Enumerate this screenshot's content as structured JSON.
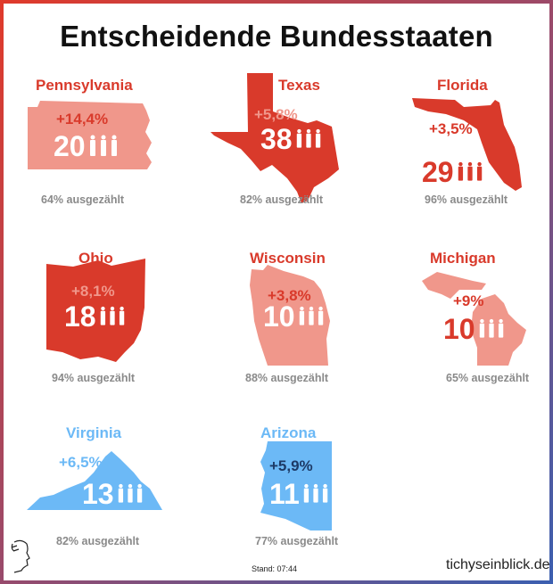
{
  "title": "Entscheidende Bundesstaaten",
  "colors": {
    "dark_red": "#d93a2b",
    "light_red": "#f0978b",
    "blue": "#6cb9f6",
    "navy": "#1d3a66",
    "gray": "#8a8a8a"
  },
  "people_icon": "three-people-icon",
  "states": [
    {
      "name": "Pennsylvania",
      "change": "+14,4%",
      "electors": "20",
      "counted": "64% ausgezählt"
    },
    {
      "name": "Texas",
      "change": "+5,8%",
      "electors": "38",
      "counted": "82% ausgezählt"
    },
    {
      "name": "Florida",
      "change": "+3,5%",
      "electors": "29",
      "counted": "96% ausgezählt"
    },
    {
      "name": "Ohio",
      "change": "+8,1%",
      "electors": "18",
      "counted": "94% ausgezählt"
    },
    {
      "name": "Wisconsin",
      "change": "+3,8%",
      "electors": "10",
      "counted": "88% ausgezählt"
    },
    {
      "name": "Michigan",
      "change": "+9%",
      "electors": "10",
      "counted": "65% ausgezählt"
    },
    {
      "name": "Virginia",
      "change": "+6,5%",
      "electors": "13",
      "counted": "82% ausgezählt"
    },
    {
      "name": "Arizona",
      "change": "+5,9%",
      "electors": "11",
      "counted": "77% ausgezählt"
    }
  ],
  "footer": {
    "stand": "Stand: 07:44",
    "brand": "tichyseinblick.de"
  }
}
